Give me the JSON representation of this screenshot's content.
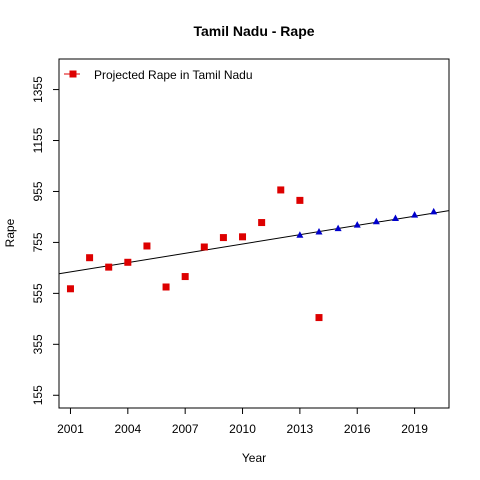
{
  "chart_data": {
    "type": "scatter",
    "title": "Tamil Nadu  -  Rape",
    "xlabel": "Year",
    "ylabel": "Rape",
    "xlim": [
      2000.4,
      2020.8
    ],
    "ylim": [
      105,
      1475
    ],
    "x_ticks": [
      2001,
      2004,
      2007,
      2010,
      2013,
      2016,
      2019
    ],
    "y_ticks": [
      155,
      355,
      555,
      755,
      955,
      1155,
      1355
    ],
    "grid": false,
    "legend": {
      "position": "top-left",
      "label": "Projected  Rape  in  Tamil Nadu"
    },
    "series": [
      {
        "marker": "square",
        "color": "#dd0000",
        "x": [
          2001,
          2002,
          2003,
          2004,
          2005,
          2006,
          2007,
          2008,
          2009,
          2010,
          2011,
          2012,
          2013,
          2014
        ],
        "y": [
          573,
          695,
          658,
          677,
          741,
          580,
          621,
          737,
          774,
          777,
          833,
          961,
          920,
          460
        ]
      },
      {
        "marker": "triangle",
        "color": "#0000cc",
        "x": [
          2013,
          2014,
          2015,
          2016,
          2017,
          2018,
          2019,
          2020
        ],
        "y": [
          785,
          798,
          811,
          825,
          838,
          851,
          864,
          877
        ]
      }
    ],
    "trend_line": {
      "color": "#000000",
      "x": [
        2000.4,
        2020.8
      ],
      "y": [
        632,
        880
      ]
    }
  }
}
